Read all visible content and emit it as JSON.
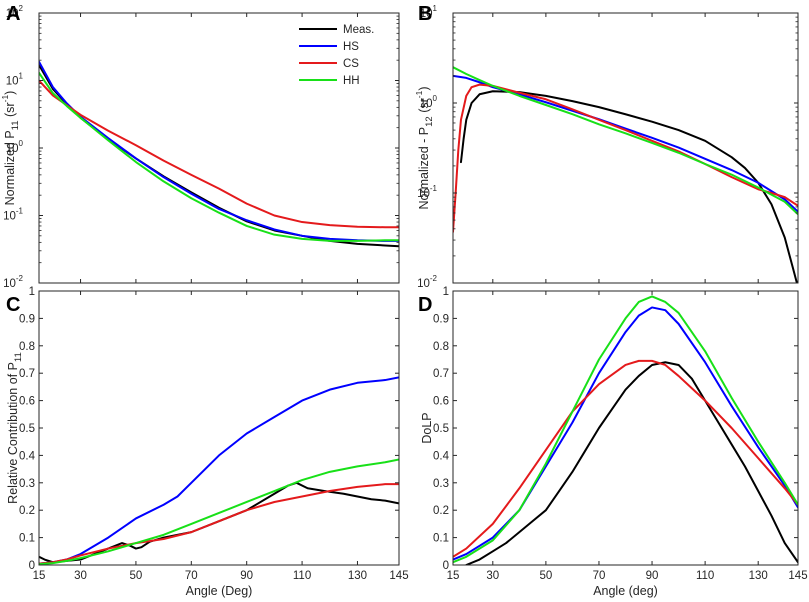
{
  "colors": {
    "meas": "#000000",
    "hs": "#0000ff",
    "cs": "#e41a1c",
    "hh": "#18e018",
    "axis": "#262626"
  },
  "legend": {
    "entries": [
      "Meas.",
      "HS",
      "CS",
      "HH"
    ]
  },
  "chart_data": [
    {
      "panel": "A",
      "type": "line",
      "yscale": "log",
      "xlabel": "",
      "ylabel_main": "Normalized P",
      "ylabel_sub": "11",
      "ylabel_unit": "(sr",
      "ylabel_unit_sup": "-1",
      "ylabel_close": ")",
      "xlim": [
        15,
        145
      ],
      "ylim": [
        0.01,
        100
      ],
      "xticks": [
        15,
        30,
        50,
        70,
        90,
        110,
        130,
        145
      ],
      "xtick_labels": [
        "",
        "",
        "",
        "",
        "",
        "",
        "",
        ""
      ],
      "yticks": [
        0.01,
        0.1,
        1,
        10,
        100
      ],
      "ytick_base": [
        "10",
        "10",
        "10",
        "10",
        "10"
      ],
      "ytick_exp": [
        "-2",
        "-1",
        "0",
        "1",
        "2"
      ],
      "legend_position": "top-right",
      "series": [
        {
          "name": "Meas.",
          "x": [
            15,
            20,
            25,
            30,
            40,
            50,
            60,
            70,
            80,
            90,
            100,
            110,
            120,
            130,
            140,
            145
          ],
          "y": [
            17,
            7.5,
            4.5,
            2.8,
            1.35,
            0.7,
            0.38,
            0.22,
            0.13,
            0.082,
            0.06,
            0.05,
            0.042,
            0.038,
            0.036,
            0.035
          ]
        },
        {
          "name": "HS",
          "x": [
            15,
            20,
            25,
            30,
            40,
            50,
            60,
            70,
            80,
            90,
            100,
            110,
            120,
            130,
            140,
            145
          ],
          "y": [
            19,
            8,
            4.6,
            2.9,
            1.4,
            0.7,
            0.37,
            0.21,
            0.125,
            0.085,
            0.062,
            0.05,
            0.045,
            0.043,
            0.042,
            0.042
          ]
        },
        {
          "name": "CS",
          "x": [
            15,
            20,
            25,
            30,
            40,
            50,
            60,
            70,
            80,
            90,
            100,
            110,
            120,
            130,
            140,
            145
          ],
          "y": [
            10,
            6,
            4.3,
            3.1,
            1.8,
            1.1,
            0.65,
            0.4,
            0.25,
            0.15,
            0.1,
            0.08,
            0.072,
            0.068,
            0.067,
            0.067
          ]
        },
        {
          "name": "HH",
          "x": [
            15,
            20,
            25,
            30,
            40,
            50,
            60,
            70,
            80,
            90,
            100,
            110,
            120,
            130,
            140,
            145
          ],
          "y": [
            13,
            6.5,
            4.2,
            2.8,
            1.3,
            0.62,
            0.32,
            0.18,
            0.11,
            0.07,
            0.052,
            0.045,
            0.042,
            0.042,
            0.043,
            0.043
          ]
        }
      ]
    },
    {
      "panel": "B",
      "type": "line",
      "yscale": "log",
      "xlabel": "",
      "ylabel_main": "Normalized - P",
      "ylabel_sub": "12",
      "ylabel_unit": "(sr",
      "ylabel_unit_sup": "-1",
      "ylabel_close": ")",
      "xlim": [
        15,
        145
      ],
      "ylim": [
        0.01,
        10
      ],
      "xticks": [
        15,
        30,
        50,
        70,
        90,
        110,
        130,
        145
      ],
      "xtick_labels": [
        "",
        "",
        "",
        "",
        "",
        "",
        "",
        ""
      ],
      "yticks": [
        0.01,
        0.1,
        1,
        10
      ],
      "ytick_base": [
        "10",
        "10",
        "10",
        "10"
      ],
      "ytick_exp": [
        "-2",
        "-1",
        "0",
        "1"
      ],
      "series": [
        {
          "name": "Meas.",
          "x": [
            18,
            19,
            20,
            22,
            25,
            30,
            40,
            50,
            60,
            70,
            80,
            90,
            100,
            110,
            120,
            125,
            130,
            135,
            140,
            143,
            145
          ],
          "y": [
            0.22,
            0.4,
            0.65,
            1.0,
            1.25,
            1.35,
            1.32,
            1.2,
            1.05,
            0.9,
            0.75,
            0.62,
            0.5,
            0.38,
            0.25,
            0.19,
            0.13,
            0.075,
            0.032,
            0.015,
            0.009
          ]
        },
        {
          "name": "HS",
          "x": [
            15,
            20,
            25,
            30,
            40,
            50,
            60,
            70,
            80,
            90,
            100,
            110,
            120,
            130,
            140,
            145
          ],
          "y": [
            2.0,
            1.9,
            1.7,
            1.5,
            1.25,
            1.02,
            0.82,
            0.66,
            0.52,
            0.41,
            0.32,
            0.24,
            0.18,
            0.13,
            0.085,
            0.062
          ]
        },
        {
          "name": "CS",
          "x": [
            15,
            16,
            17,
            18,
            20,
            22,
            25,
            30,
            40,
            50,
            60,
            70,
            80,
            90,
            100,
            110,
            120,
            130,
            135,
            140,
            145
          ],
          "y": [
            0.037,
            0.1,
            0.3,
            0.65,
            1.2,
            1.5,
            1.6,
            1.55,
            1.3,
            1.1,
            0.85,
            0.65,
            0.5,
            0.38,
            0.29,
            0.21,
            0.15,
            0.11,
            0.1,
            0.09,
            0.072
          ]
        },
        {
          "name": "HH",
          "x": [
            15,
            20,
            25,
            30,
            40,
            50,
            60,
            70,
            80,
            90,
            100,
            110,
            120,
            130,
            140,
            145
          ],
          "y": [
            2.5,
            2.1,
            1.8,
            1.55,
            1.2,
            0.95,
            0.75,
            0.58,
            0.46,
            0.36,
            0.28,
            0.21,
            0.16,
            0.115,
            0.08,
            0.058
          ]
        }
      ]
    },
    {
      "panel": "C",
      "type": "line",
      "yscale": "linear",
      "xlabel": "Angle (Deg)",
      "ylabel_main": "Relative Contribution of P",
      "ylabel_sub": "11",
      "ylabel_unit": "",
      "ylabel_unit_sup": "",
      "ylabel_close": "",
      "xlim": [
        15,
        145
      ],
      "ylim": [
        0,
        1
      ],
      "xticks": [
        15,
        30,
        50,
        70,
        90,
        110,
        130,
        145
      ],
      "xtick_labels": [
        "15",
        "30",
        "50",
        "70",
        "90",
        "110",
        "130",
        "145"
      ],
      "yticks": [
        0,
        0.1,
        0.2,
        0.3,
        0.4,
        0.5,
        0.6,
        0.7,
        0.8,
        0.9,
        1
      ],
      "ytick_labels": [
        "0",
        "0.1",
        "0.2",
        "0.3",
        "0.4",
        "0.5",
        "0.6",
        "0.7",
        "0.8",
        "0.9",
        "1"
      ],
      "series": [
        {
          "name": "Meas.",
          "x": [
            15,
            17,
            20,
            25,
            30,
            35,
            40,
            45,
            48,
            50,
            52,
            55,
            60,
            65,
            70,
            80,
            90,
            100,
            105,
            108,
            112,
            118,
            125,
            130,
            135,
            140,
            145
          ],
          "y": [
            0.03,
            0.02,
            0.01,
            0.015,
            0.02,
            0.04,
            0.06,
            0.08,
            0.07,
            0.06,
            0.065,
            0.085,
            0.1,
            0.11,
            0.12,
            0.16,
            0.2,
            0.26,
            0.29,
            0.3,
            0.28,
            0.27,
            0.26,
            0.25,
            0.24,
            0.235,
            0.225
          ]
        },
        {
          "name": "HS",
          "x": [
            15,
            20,
            25,
            30,
            40,
            50,
            60,
            65,
            70,
            80,
            90,
            100,
            110,
            120,
            130,
            140,
            145
          ],
          "y": [
            0.005,
            0.01,
            0.02,
            0.04,
            0.1,
            0.17,
            0.22,
            0.25,
            0.3,
            0.4,
            0.48,
            0.54,
            0.6,
            0.64,
            0.665,
            0.675,
            0.685
          ]
        },
        {
          "name": "CS",
          "x": [
            15,
            20,
            25,
            30,
            40,
            50,
            60,
            70,
            80,
            90,
            100,
            110,
            120,
            130,
            140,
            145
          ],
          "y": [
            0.005,
            0.01,
            0.02,
            0.035,
            0.06,
            0.08,
            0.095,
            0.12,
            0.16,
            0.2,
            0.23,
            0.25,
            0.27,
            0.285,
            0.295,
            0.295
          ]
        },
        {
          "name": "HH",
          "x": [
            15,
            20,
            25,
            30,
            40,
            50,
            60,
            70,
            80,
            90,
            100,
            110,
            120,
            130,
            140,
            145
          ],
          "y": [
            0.003,
            0.007,
            0.015,
            0.025,
            0.05,
            0.08,
            0.11,
            0.15,
            0.19,
            0.23,
            0.27,
            0.31,
            0.34,
            0.36,
            0.375,
            0.385
          ]
        }
      ]
    },
    {
      "panel": "D",
      "type": "line",
      "yscale": "linear",
      "xlabel": "Angle (deg)",
      "ylabel_main": "DoLP",
      "ylabel_sub": "",
      "ylabel_unit": "",
      "ylabel_unit_sup": "",
      "ylabel_close": "",
      "xlim": [
        15,
        145
      ],
      "ylim": [
        0,
        1
      ],
      "xticks": [
        15,
        30,
        50,
        70,
        90,
        110,
        130,
        145
      ],
      "xtick_labels": [
        "15",
        "30",
        "50",
        "70",
        "90",
        "110",
        "130",
        "145"
      ],
      "yticks": [
        0,
        0.1,
        0.2,
        0.3,
        0.4,
        0.5,
        0.6,
        0.7,
        0.8,
        0.9,
        1
      ],
      "ytick_labels": [
        "0",
        "0.1",
        "0.2",
        "0.3",
        "0.4",
        "0.5",
        "0.6",
        "0.7",
        "0.8",
        "0.9",
        "1"
      ],
      "series": [
        {
          "name": "Meas.",
          "x": [
            20,
            25,
            30,
            35,
            40,
            45,
            50,
            55,
            60,
            65,
            70,
            75,
            80,
            85,
            90,
            95,
            100,
            105,
            110,
            115,
            120,
            125,
            130,
            135,
            140,
            145
          ],
          "y": [
            0.0,
            0.02,
            0.05,
            0.08,
            0.12,
            0.16,
            0.2,
            0.27,
            0.34,
            0.42,
            0.5,
            0.57,
            0.64,
            0.69,
            0.73,
            0.74,
            0.73,
            0.68,
            0.6,
            0.52,
            0.44,
            0.36,
            0.27,
            0.18,
            0.08,
            0.01
          ]
        },
        {
          "name": "HS",
          "x": [
            15,
            20,
            30,
            40,
            50,
            60,
            70,
            80,
            85,
            90,
            95,
            100,
            110,
            120,
            130,
            140,
            145
          ],
          "y": [
            0.02,
            0.04,
            0.1,
            0.2,
            0.36,
            0.52,
            0.7,
            0.85,
            0.91,
            0.94,
            0.93,
            0.88,
            0.74,
            0.58,
            0.43,
            0.29,
            0.21
          ]
        },
        {
          "name": "CS",
          "x": [
            15,
            20,
            30,
            40,
            50,
            60,
            70,
            80,
            85,
            90,
            95,
            100,
            110,
            120,
            130,
            140,
            145
          ],
          "y": [
            0.03,
            0.06,
            0.15,
            0.28,
            0.42,
            0.56,
            0.66,
            0.73,
            0.745,
            0.745,
            0.73,
            0.69,
            0.6,
            0.5,
            0.39,
            0.28,
            0.22
          ]
        },
        {
          "name": "HH",
          "x": [
            15,
            20,
            30,
            40,
            50,
            60,
            70,
            80,
            85,
            90,
            95,
            100,
            110,
            120,
            130,
            140,
            145
          ],
          "y": [
            0.01,
            0.03,
            0.09,
            0.2,
            0.37,
            0.56,
            0.75,
            0.9,
            0.96,
            0.98,
            0.96,
            0.92,
            0.78,
            0.61,
            0.45,
            0.3,
            0.22
          ]
        }
      ]
    }
  ]
}
